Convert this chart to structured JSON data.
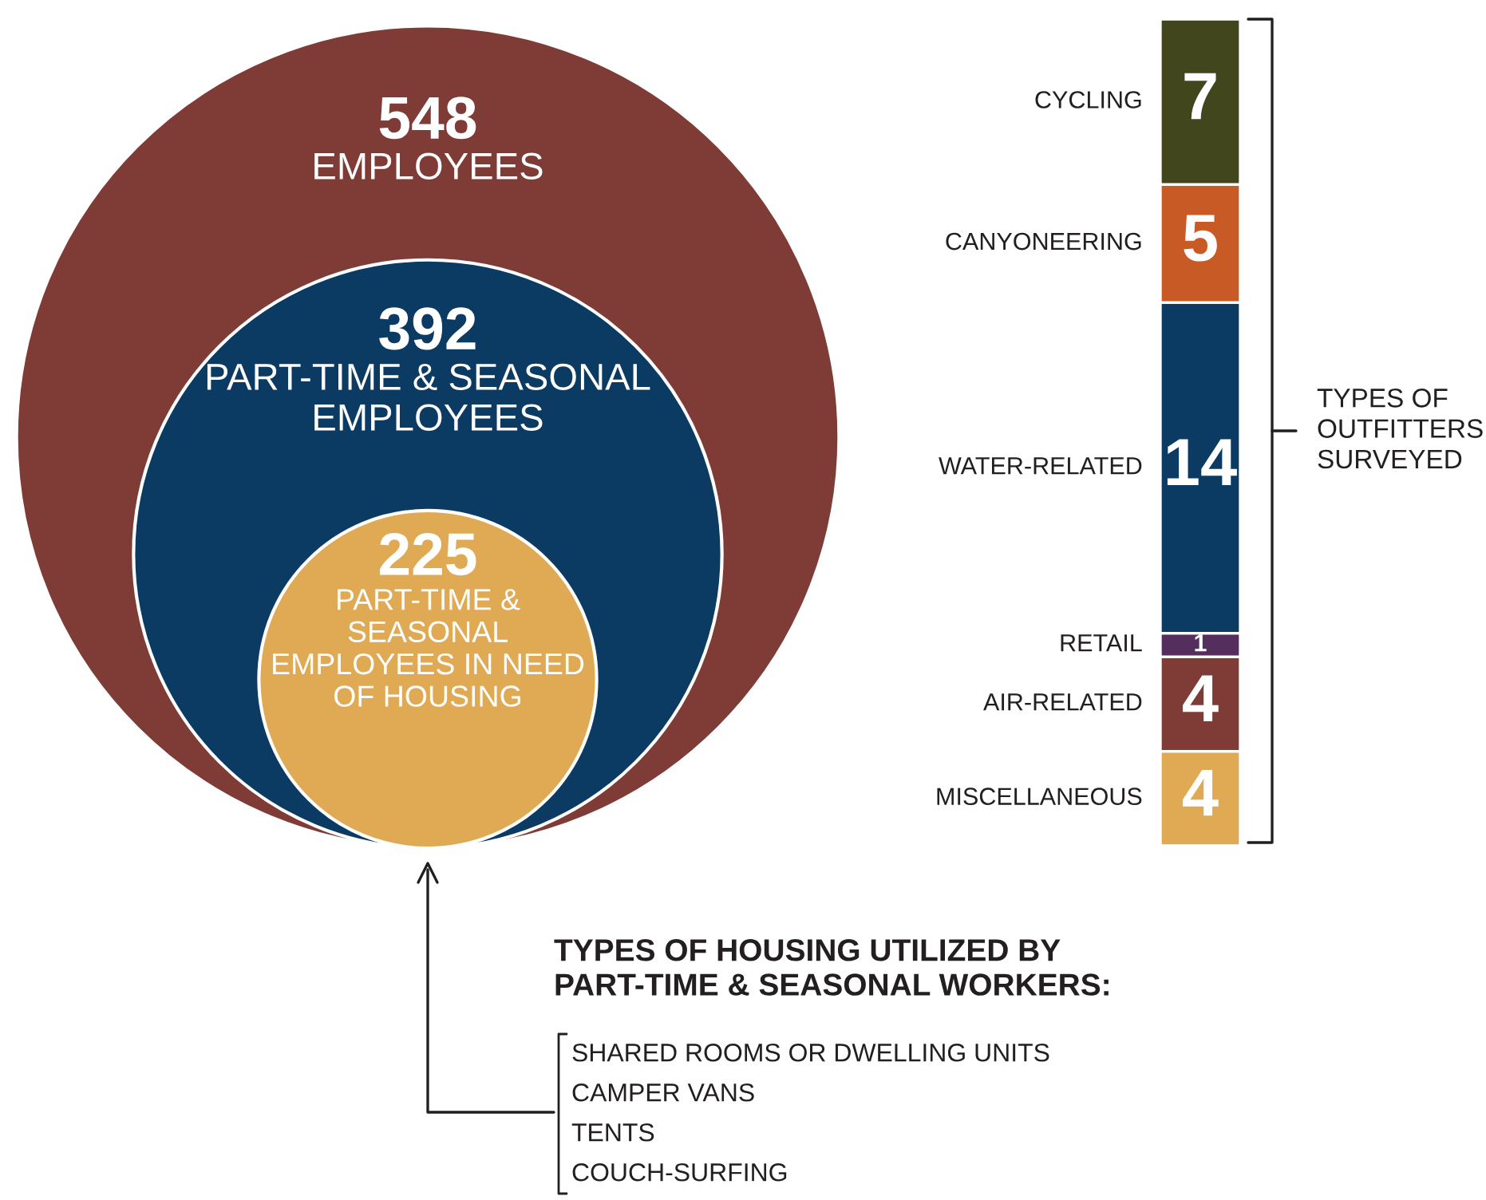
{
  "chart_data": [
    {
      "type": "other",
      "categories": [
        "EMPLOYEES",
        "PART-TIME & SEASONAL\nEMPLOYEES",
        "PART-TIME &\nSEASONAL\nEMPLOYEES IN NEED\nOF HOUSING"
      ],
      "values": [
        548,
        392,
        225
      ],
      "colors": [
        "#7f3b36",
        "#0b3a62",
        "#e0aa55"
      ],
      "data_labels": true,
      "annotations": [
        "TYPES OF HOUSING UTILIZED BY\nPART-TIME & SEASONAL WORKERS:",
        "SHARED ROOMS OR DWELLING UNITS",
        "CAMPER VANS",
        "TENTS",
        "COUCH-SURFING"
      ]
    },
    {
      "type": "bar",
      "stacked": true,
      "data_labels": true,
      "categories": [
        null
      ],
      "series": [
        {
          "name": "MISCELLANEOUS",
          "color": "#e0aa55",
          "values": [
            4
          ]
        },
        {
          "name": "AIR-RELATED",
          "color": "#7f3b36",
          "values": [
            4
          ]
        },
        {
          "name": "RETAIL",
          "color": "#542e5c",
          "values": [
            1
          ]
        },
        {
          "name": "WATER-RELATED",
          "color": "#0b3a62",
          "values": [
            14
          ]
        },
        {
          "name": "CANYONEERING",
          "color": "#c85a26",
          "values": [
            5
          ]
        },
        {
          "name": "CYCLING",
          "color": "#41461c",
          "values": [
            7
          ]
        }
      ],
      "annotations": [
        "TYPES OF\nOUTFITTERS\nSURVEYED"
      ]
    }
  ]
}
